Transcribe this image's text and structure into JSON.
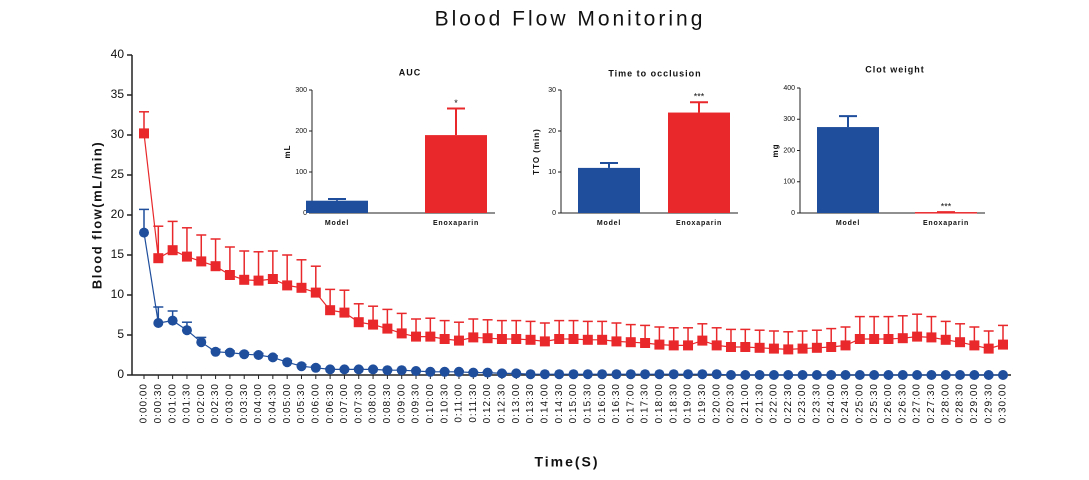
{
  "chart_data": [
    {
      "type": "line",
      "title": "Blood Flow Monitoring",
      "x_label": "Time(S)",
      "y_label": "Blood flow(mL/min)",
      "categories": [
        "0:00:00",
        "0:00:30",
        "0:01:00",
        "0:01:30",
        "0:02:00",
        "0:02:30",
        "0:03:00",
        "0:03:30",
        "0:04:00",
        "0:04:30",
        "0:05:00",
        "0:05:30",
        "0:06:00",
        "0:06:30",
        "0:07:00",
        "0:07:30",
        "0:08:00",
        "0:08:30",
        "0:09:00",
        "0:09:30",
        "0:10:00",
        "0:10:30",
        "0:11:00",
        "0:11:30",
        "0:12:00",
        "0:12:30",
        "0:13:00",
        "0:13:30",
        "0:14:00",
        "0:14:30",
        "0:15:00",
        "0:15:30",
        "0:16:00",
        "0:16:30",
        "0:17:00",
        "0:17:30",
        "0:18:00",
        "0:18:30",
        "0:19:00",
        "0:19:30",
        "0:20:00",
        "0:20:30",
        "0:21:00",
        "0:21:30",
        "0:22:00",
        "0:22:30",
        "0:23:00",
        "0:23:30",
        "0:24:00",
        "0:24:30",
        "0:25:00",
        "0:25:30",
        "0:26:00",
        "0:26:30",
        "0:27:00",
        "0:27:30",
        "0:28:00",
        "0:28:30",
        "0:29:00",
        "0:29:30",
        "0:30:00"
      ],
      "series": [
        {
          "color": "#1f4e9c",
          "marker": "circle",
          "values": [
            17.8,
            6.5,
            6.8,
            5.6,
            4.1,
            2.9,
            2.8,
            2.6,
            2.5,
            2.2,
            1.6,
            1.1,
            0.9,
            0.7,
            0.7,
            0.7,
            0.7,
            0.6,
            0.6,
            0.5,
            0.4,
            0.4,
            0.4,
            0.3,
            0.3,
            0.2,
            0.2,
            0.1,
            0.1,
            0.1,
            0.1,
            0.1,
            0.1,
            0.1,
            0.1,
            0.1,
            0.1,
            0.1,
            0.1,
            0.1,
            0.1,
            0,
            0,
            0,
            0,
            0,
            0,
            0,
            0,
            0,
            0,
            0,
            0,
            0,
            0,
            0,
            0,
            0,
            0,
            0,
            0
          ],
          "errors": [
            2.9,
            2.0,
            1.2,
            1.0,
            0.6,
            0.3,
            0.2,
            0.2,
            0.2,
            0.2,
            0.2,
            0.2,
            0.2,
            0.1,
            0.1,
            0.1,
            0.1,
            0.1,
            0.1,
            0.1,
            0.1,
            0.1,
            0.1,
            0.1,
            0.1,
            0.1,
            0,
            0,
            0,
            0,
            0,
            0,
            0,
            0,
            0,
            0,
            0,
            0,
            0,
            0,
            0,
            0,
            0,
            0,
            0,
            0,
            0,
            0,
            0,
            0,
            0,
            0,
            0,
            0,
            0,
            0,
            0,
            0,
            0,
            0,
            0
          ]
        },
        {
          "color": "#e8282b",
          "marker": "square",
          "values": [
            30.2,
            14.6,
            15.6,
            14.8,
            14.2,
            13.6,
            12.5,
            11.9,
            11.8,
            12.0,
            11.2,
            10.9,
            10.3,
            8.1,
            7.8,
            6.6,
            6.3,
            5.8,
            5.2,
            4.8,
            4.8,
            4.5,
            4.3,
            4.7,
            4.6,
            4.5,
            4.5,
            4.4,
            4.2,
            4.5,
            4.5,
            4.4,
            4.4,
            4.2,
            4.1,
            4.0,
            3.8,
            3.7,
            3.7,
            4.3,
            3.7,
            3.5,
            3.5,
            3.4,
            3.3,
            3.2,
            3.3,
            3.4,
            3.5,
            3.7,
            4.5,
            4.5,
            4.5,
            4.6,
            4.8,
            4.7,
            4.4,
            4.1,
            3.7,
            3.3,
            3.8
          ],
          "errors": [
            2.7,
            4.0,
            3.6,
            3.6,
            3.3,
            3.4,
            3.5,
            3.6,
            3.6,
            3.5,
            3.8,
            3.5,
            3.3,
            2.6,
            2.8,
            2.3,
            2.3,
            2.4,
            2.5,
            2.2,
            2.3,
            2.3,
            2.3,
            2.3,
            2.3,
            2.3,
            2.3,
            2.3,
            2.3,
            2.3,
            2.3,
            2.3,
            2.3,
            2.3,
            2.2,
            2.2,
            2.2,
            2.2,
            2.2,
            2.1,
            2.2,
            2.2,
            2.2,
            2.2,
            2.2,
            2.2,
            2.2,
            2.2,
            2.3,
            2.3,
            2.8,
            2.8,
            2.8,
            2.8,
            2.8,
            2.6,
            2.3,
            2.3,
            2.3,
            2.2,
            2.4
          ]
        }
      ],
      "ylim": [
        0,
        40
      ],
      "yticks": [
        0,
        5,
        10,
        15,
        20,
        25,
        30,
        35,
        40
      ]
    },
    {
      "type": "bar",
      "title": "AUC",
      "y_label": "mL",
      "categories": [
        "Model",
        "Enoxaparin"
      ],
      "values": [
        30,
        190
      ],
      "errors": [
        4,
        65
      ],
      "colors": [
        "#1f4e9c",
        "#e8282b"
      ],
      "value_annotations": [
        null,
        "*"
      ],
      "ylim": [
        0,
        300
      ],
      "yticks": [
        0,
        100,
        200,
        300
      ]
    },
    {
      "type": "bar",
      "title": "Time to occlusion",
      "y_label": "TTO (min)",
      "categories": [
        "Model",
        "Enoxaparin"
      ],
      "values": [
        11,
        24.5
      ],
      "errors": [
        1.2,
        2.5
      ],
      "colors": [
        "#1f4e9c",
        "#e8282b"
      ],
      "value_annotations": [
        null,
        "***"
      ],
      "ylim": [
        0,
        30
      ],
      "yticks": [
        0,
        10,
        20,
        30
      ]
    },
    {
      "type": "bar",
      "title": "Clot weight",
      "y_label": "mg",
      "categories": [
        "Model",
        "Enoxaparin"
      ],
      "values": [
        275,
        3
      ],
      "errors": [
        35,
        0
      ],
      "colors": [
        "#1f4e9c",
        "#e8282b"
      ],
      "value_annotations": [
        null,
        "***"
      ],
      "ylim": [
        0,
        400
      ],
      "yticks": [
        0,
        100,
        200,
        300,
        400
      ]
    }
  ]
}
